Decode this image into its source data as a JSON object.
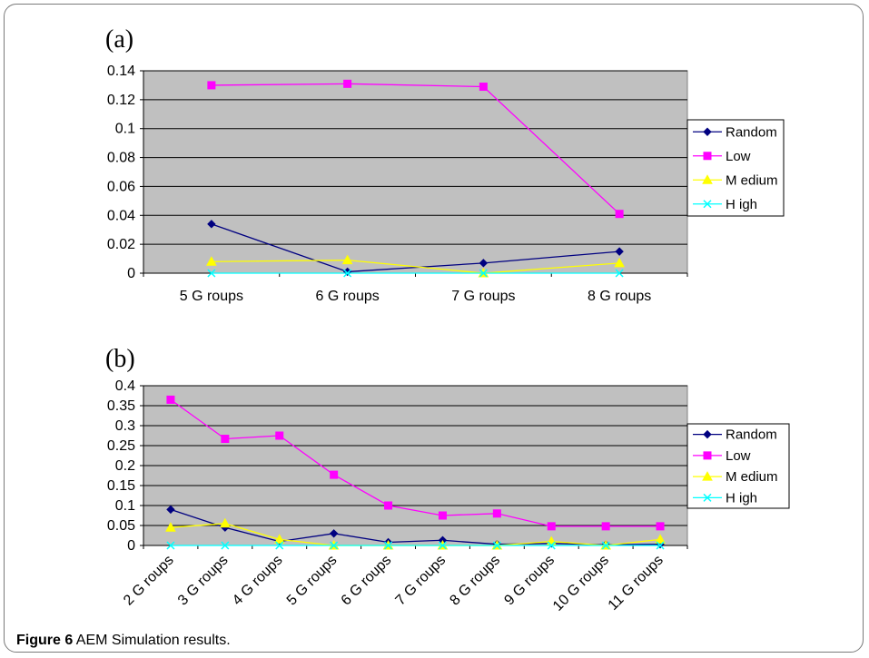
{
  "caption": {
    "label": "Figure 6",
    "text": "AEM Simulation results."
  },
  "legend_colors": {
    "Random": "#000080",
    "Low": "#ff00ff",
    "Medium": "#ffff00",
    "High": "#00ffff"
  },
  "plot_background": "#c0c0c0",
  "chart_data": [
    {
      "type": "line",
      "panel_label": "(a)",
      "categories": [
        "5 G roups",
        "6 G roups",
        "7 G roups",
        "8 G roups"
      ],
      "ylim": [
        0,
        0.14
      ],
      "yticks": [
        "0",
        "0.02",
        "0.04",
        "0.06",
        "0.08",
        "0.1",
        "0.12",
        "0.14"
      ],
      "grid": true,
      "legend_placement": "right",
      "series": [
        {
          "name": "Random",
          "marker": "diamond",
          "values": [
            0.034,
            0.001,
            0.007,
            0.015
          ]
        },
        {
          "name": "Low",
          "marker": "square",
          "values": [
            0.13,
            0.131,
            0.129,
            0.041
          ]
        },
        {
          "name": "M edium",
          "marker": "triangle",
          "values": [
            0.008,
            0.009,
            0.0,
            0.007
          ]
        },
        {
          "name": "H igh",
          "marker": "x",
          "values": [
            0.0,
            0.0,
            0.0,
            0.0
          ]
        }
      ]
    },
    {
      "type": "line",
      "panel_label": "(b)",
      "categories": [
        "2 G roups",
        "3 G roups",
        "4 G roups",
        "5 G roups",
        "6 G roups",
        "7 G roups",
        "8 G roups",
        "9 G roups",
        "10 G roups",
        "11 G roups"
      ],
      "ylim": [
        0,
        0.4
      ],
      "yticks": [
        "0",
        "0.05",
        "0.1",
        "0.15",
        "0.2",
        "0.25",
        "0.3",
        "0.35",
        "0.4"
      ],
      "grid": true,
      "legend_placement": "right",
      "series": [
        {
          "name": "Random",
          "marker": "diamond",
          "values": [
            0.09,
            0.045,
            0.01,
            0.03,
            0.008,
            0.013,
            0.003,
            0.005,
            0.002,
            0.003
          ]
        },
        {
          "name": "Low",
          "marker": "square",
          "values": [
            0.365,
            0.267,
            0.275,
            0.177,
            0.1,
            0.075,
            0.08,
            0.048,
            0.048,
            0.048
          ]
        },
        {
          "name": "M edium",
          "marker": "triangle",
          "values": [
            0.045,
            0.055,
            0.015,
            0.0,
            0.0,
            0.0,
            0.0,
            0.01,
            0.0,
            0.015
          ]
        },
        {
          "name": "H igh",
          "marker": "x",
          "values": [
            0.0,
            0.0,
            0.0,
            0.0,
            0.0,
            0.0,
            0.0,
            0.0,
            0.0,
            0.0
          ]
        }
      ]
    }
  ]
}
